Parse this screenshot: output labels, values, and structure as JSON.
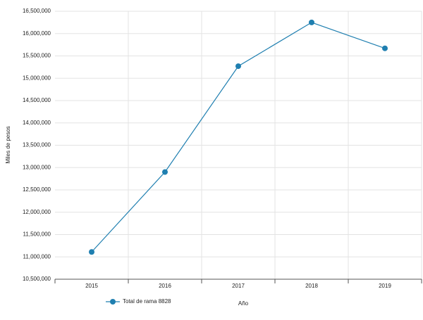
{
  "chart_data": {
    "type": "line",
    "categories": [
      "2015",
      "2016",
      "2017",
      "2018",
      "2019"
    ],
    "series": [
      {
        "name": "Total de rama 8828",
        "color": "#1f7fb0",
        "values": [
          11110000,
          12900000,
          15270000,
          16250000,
          15670000
        ]
      }
    ],
    "y_label": "Miles de pesos",
    "x_label": "Año",
    "ylim": [
      10500000,
      16500000
    ],
    "yticks": [
      {
        "value": 10500000,
        "label": "10,500,000"
      },
      {
        "value": 11000000,
        "label": "11,000,000"
      },
      {
        "value": 11500000,
        "label": "11,500,000"
      },
      {
        "value": 12000000,
        "label": "12,000,000"
      },
      {
        "value": 12500000,
        "label": "12,500,000"
      },
      {
        "value": 13000000,
        "label": "13,000,000"
      },
      {
        "value": 13500000,
        "label": "13,500,000"
      },
      {
        "value": 14000000,
        "label": "14,000,000"
      },
      {
        "value": 14500000,
        "label": "14,500,000"
      },
      {
        "value": 15000000,
        "label": "15,000,000"
      },
      {
        "value": 15500000,
        "label": "15,500,000"
      },
      {
        "value": 16000000,
        "label": "16,000,000"
      },
      {
        "value": 16500000,
        "label": "16,500,000"
      }
    ],
    "grid": true
  }
}
